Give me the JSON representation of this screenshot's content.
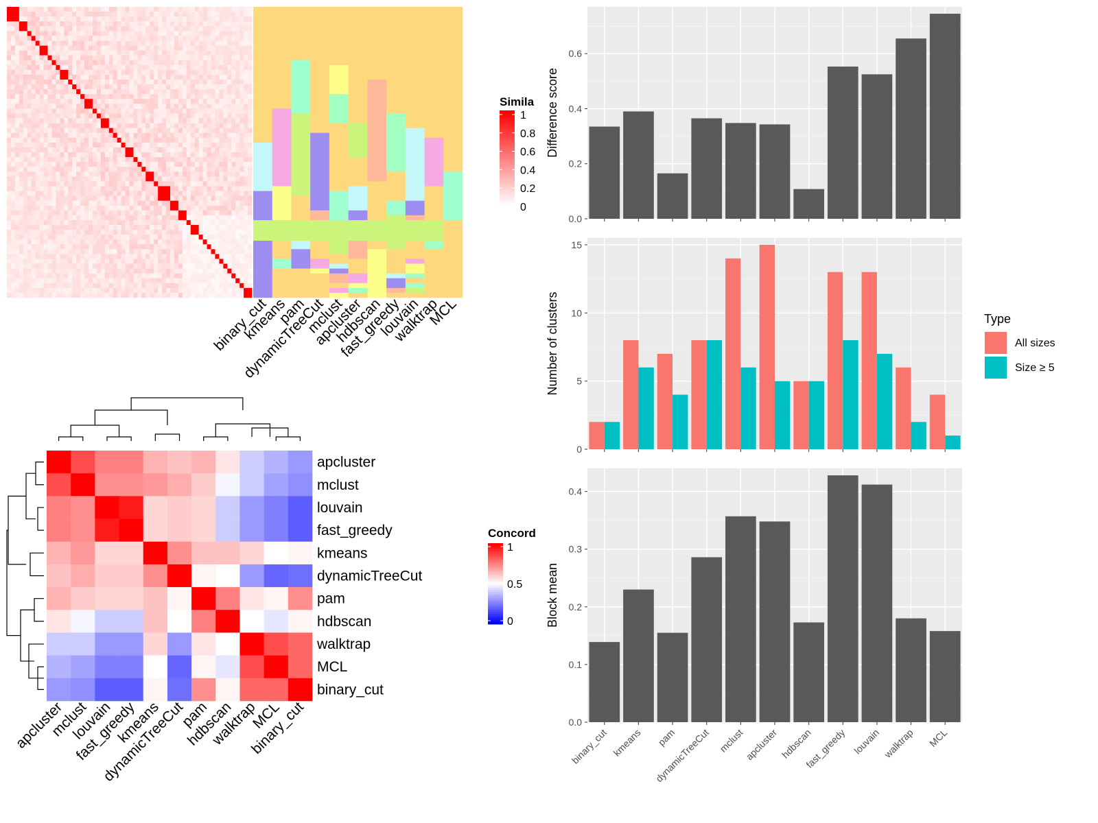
{
  "chart_data": [
    {
      "type": "heatmap",
      "panel": "similarity-heatmap",
      "legend_title": "Simila",
      "legend_ticks": [
        "1",
        "0.8",
        "0.6",
        "0.4",
        "0.2",
        "0"
      ],
      "annotation_columns": [
        "binary_cut",
        "kmeans",
        "pam",
        "dynamicTreeCut",
        "mclust",
        "apcluster",
        "hdbscan",
        "fast_greedy",
        "louvain",
        "walktrap",
        "MCL"
      ],
      "diagonal_blocks": [
        3,
        2,
        1,
        1,
        1,
        2,
        1,
        1,
        1,
        2,
        1,
        1,
        1,
        1,
        2,
        1,
        1,
        2,
        1,
        1,
        1,
        1,
        2,
        1,
        1,
        1,
        2,
        1,
        3,
        2,
        2,
        1,
        2,
        1,
        1,
        1,
        1,
        1,
        1,
        1,
        1,
        1,
        1,
        1,
        2
      ],
      "colors": {
        "high": "#ff0000",
        "low": "#ffffff"
      }
    },
    {
      "type": "heatmap",
      "panel": "concordance-heatmap",
      "legend_title": "Concord",
      "legend_ticks": [
        "1",
        "0.5",
        "0"
      ],
      "rows": [
        "apcluster",
        "mclust",
        "louvain",
        "fast_greedy",
        "kmeans",
        "dynamicTreeCut",
        "pam",
        "hdbscan",
        "walktrap",
        "MCL",
        "binary_cut"
      ],
      "columns": [
        "apcluster",
        "mclust",
        "louvain",
        "fast_greedy",
        "kmeans",
        "dynamicTreeCut",
        "pam",
        "hdbscan",
        "walktrap",
        "MCL",
        "binary_cut"
      ],
      "values": [
        [
          1.0,
          0.85,
          0.75,
          0.75,
          0.65,
          0.62,
          0.65,
          0.55,
          0.4,
          0.35,
          0.3
        ],
        [
          0.85,
          1.0,
          0.72,
          0.72,
          0.7,
          0.66,
          0.6,
          0.48,
          0.4,
          0.32,
          0.28
        ],
        [
          0.75,
          0.72,
          1.0,
          0.95,
          0.58,
          0.6,
          0.58,
          0.4,
          0.3,
          0.25,
          0.18
        ],
        [
          0.75,
          0.72,
          0.95,
          1.0,
          0.58,
          0.6,
          0.58,
          0.4,
          0.3,
          0.25,
          0.18
        ],
        [
          0.65,
          0.7,
          0.58,
          0.58,
          1.0,
          0.72,
          0.62,
          0.62,
          0.58,
          0.5,
          0.52
        ],
        [
          0.62,
          0.66,
          0.6,
          0.6,
          0.72,
          1.0,
          0.52,
          0.5,
          0.3,
          0.2,
          0.22
        ],
        [
          0.65,
          0.6,
          0.58,
          0.58,
          0.62,
          0.52,
          1.0,
          0.75,
          0.55,
          0.52,
          0.72
        ],
        [
          0.55,
          0.48,
          0.4,
          0.4,
          0.62,
          0.5,
          0.75,
          1.0,
          0.5,
          0.45,
          0.52
        ],
        [
          0.4,
          0.4,
          0.3,
          0.3,
          0.58,
          0.3,
          0.55,
          0.5,
          1.0,
          0.85,
          0.8
        ],
        [
          0.35,
          0.32,
          0.25,
          0.25,
          0.5,
          0.2,
          0.52,
          0.45,
          0.85,
          1.0,
          0.8
        ],
        [
          0.3,
          0.28,
          0.18,
          0.18,
          0.52,
          0.22,
          0.72,
          0.52,
          0.8,
          0.8,
          1.0
        ]
      ],
      "colors": {
        "high": "#ff0000",
        "mid": "#ffffff",
        "low": "#0000ff"
      }
    },
    {
      "type": "bar",
      "panel": "difference-score",
      "categories": [
        "binary_cut",
        "kmeans",
        "pam",
        "dynamicTreeCut",
        "mclust",
        "apcluster",
        "hdbscan",
        "fast_greedy",
        "louvain",
        "walktrap",
        "MCL"
      ],
      "values": [
        0.335,
        0.39,
        0.165,
        0.365,
        0.348,
        0.343,
        0.108,
        0.553,
        0.525,
        0.655,
        0.745
      ],
      "ylabel": "Difference score",
      "ylim": [
        0,
        0.77
      ],
      "yticks": [
        "0.0",
        "0.2",
        "0.4",
        "0.6"
      ],
      "color": "#595959"
    },
    {
      "type": "bar",
      "panel": "number-of-clusters",
      "categories": [
        "binary_cut",
        "kmeans",
        "pam",
        "dynamicTreeCut",
        "mclust",
        "apcluster",
        "hdbscan",
        "fast_greedy",
        "louvain",
        "walktrap",
        "MCL"
      ],
      "series": [
        {
          "name": "All sizes",
          "values": [
            2,
            8,
            7,
            8,
            14,
            15,
            5,
            13,
            13,
            6,
            4
          ],
          "color": "#f8766d"
        },
        {
          "name": "Size ≥ 5",
          "values": [
            2,
            6,
            4,
            8,
            6,
            5,
            5,
            8,
            7,
            2,
            1
          ],
          "color": "#00bfc4"
        }
      ],
      "ylabel": "Number of clusters",
      "ylim": [
        0,
        15.5
      ],
      "yticks": [
        "0",
        "5",
        "10",
        "15"
      ],
      "legend_title": "Type",
      "legend_position": "right"
    },
    {
      "type": "bar",
      "panel": "block-mean",
      "categories": [
        "binary_cut",
        "kmeans",
        "pam",
        "dynamicTreeCut",
        "mclust",
        "apcluster",
        "hdbscan",
        "fast_greedy",
        "louvain",
        "walktrap",
        "MCL"
      ],
      "values": [
        0.139,
        0.23,
        0.155,
        0.286,
        0.357,
        0.348,
        0.173,
        0.428,
        0.412,
        0.18,
        0.158
      ],
      "ylabel": "Block mean",
      "ylim": [
        0,
        0.44
      ],
      "yticks": [
        "0.0",
        "0.1",
        "0.2",
        "0.3",
        "0.4"
      ],
      "color": "#595959"
    }
  ]
}
